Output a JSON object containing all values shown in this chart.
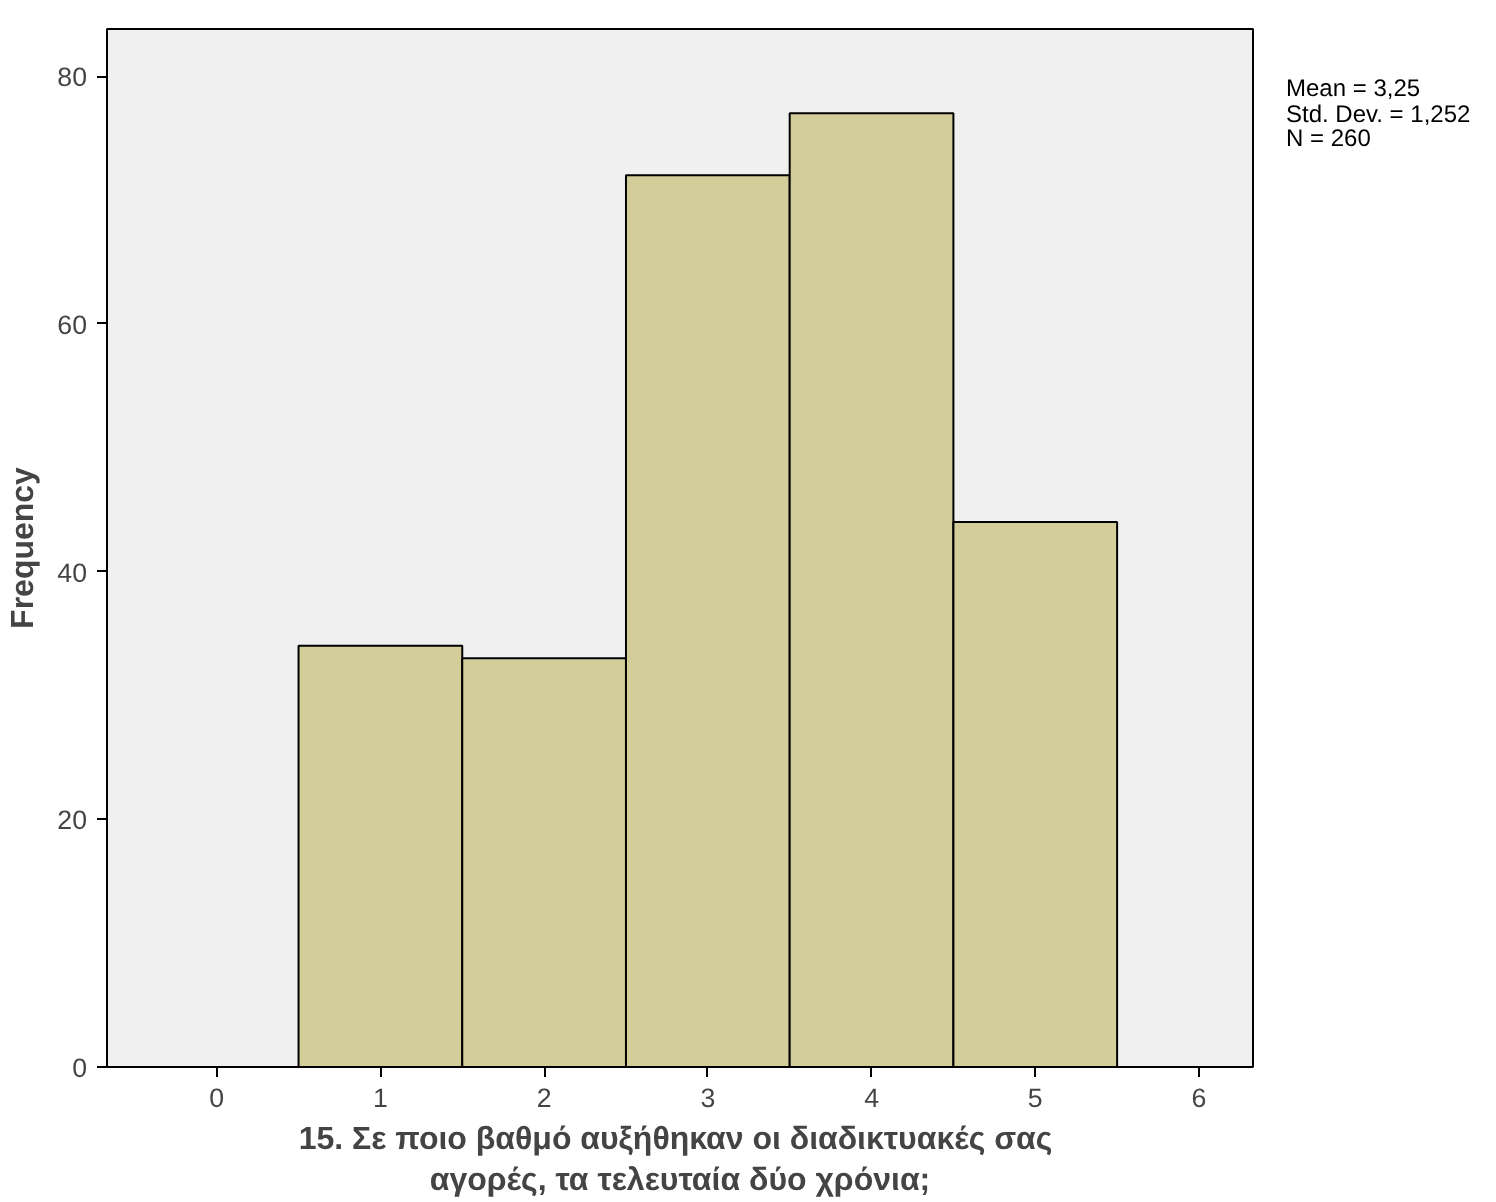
{
  "chart_data": {
    "type": "histogram",
    "xlabel": "15.  Σε ποιο βαθμό αυξήθηκαν οι διαδικτυακές σας αγορές, τα τελευταία δύο χρόνια;",
    "ylabel": "Frequency",
    "bins": [
      0.5,
      1.5,
      2.5,
      3.5,
      4.5,
      5.5
    ],
    "values": [
      34,
      33,
      72,
      77,
      44
    ],
    "color": "#d3ce99",
    "xlim": [
      -0.67,
      6.33
    ],
    "xticks": [
      0,
      1,
      2,
      3,
      4,
      5,
      6
    ],
    "ylim": [
      0,
      83.8
    ],
    "yticks": [
      0,
      20,
      40,
      60,
      80
    ],
    "grid": false,
    "annotations": [
      "Mean = 3,25",
      "Std. Dev. = 1,252",
      "N = 260"
    ]
  }
}
